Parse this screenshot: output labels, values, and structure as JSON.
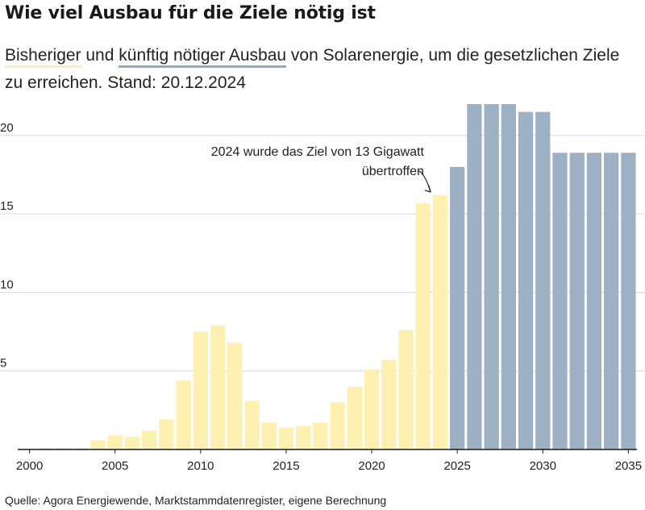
{
  "header": {
    "title": "Wie viel Ausbau für die Ziele nötig ist",
    "subtitle_part1": "Bisheriger",
    "subtitle_part2": " und ",
    "subtitle_part3": "künftig nötiger Ausbau",
    "subtitle_part4": " von Solarenergie, um die gesetzlichen Ziele zu erreichen. Stand: 20.12.2024"
  },
  "footer": {
    "source": "Quelle: Agora Energiewende, Marktstammdatenregister, eigene Berechnung"
  },
  "colors": {
    "past": "#fdf0b0",
    "future": "#9db0c4",
    "grid": "#d9d9d9",
    "axis": "#1a1a1a"
  },
  "chart_data": {
    "type": "bar",
    "title": "",
    "xlabel": "",
    "ylabel": "",
    "ylim": [
      0,
      22
    ],
    "yticks": [
      5,
      10,
      15,
      20
    ],
    "xticks": [
      2000,
      2005,
      2010,
      2015,
      2020,
      2025,
      2030,
      2035
    ],
    "grid": true,
    "categories": [
      2000,
      2001,
      2002,
      2003,
      2004,
      2005,
      2006,
      2007,
      2008,
      2009,
      2010,
      2011,
      2012,
      2013,
      2014,
      2015,
      2016,
      2017,
      2018,
      2019,
      2020,
      2021,
      2022,
      2023,
      2024,
      2025,
      2026,
      2027,
      2028,
      2029,
      2030,
      2031,
      2032,
      2033,
      2034,
      2035
    ],
    "series": [
      {
        "name": "Bisheriger",
        "values": [
          0.05,
          0.1,
          0.1,
          0.1,
          0.6,
          0.9,
          0.8,
          1.2,
          1.9,
          4.4,
          7.5,
          7.9,
          6.8,
          3.1,
          1.7,
          1.4,
          1.5,
          1.7,
          3.0,
          4.0,
          5.1,
          5.7,
          7.6,
          15.7,
          16.2,
          null,
          null,
          null,
          null,
          null,
          null,
          null,
          null,
          null,
          null,
          null
        ]
      },
      {
        "name": "künftig nötiger Ausbau",
        "values": [
          null,
          null,
          null,
          null,
          null,
          null,
          null,
          null,
          null,
          null,
          null,
          null,
          null,
          null,
          null,
          null,
          null,
          null,
          null,
          null,
          null,
          null,
          null,
          null,
          null,
          18.0,
          22.0,
          22.0,
          22.0,
          21.5,
          21.5,
          18.9,
          18.9,
          18.9,
          18.9,
          18.9
        ]
      }
    ],
    "annotation": {
      "line1": "2024 wurde das Ziel von 13 Gigawatt",
      "line2": "übertroffen",
      "target_category": 2024
    }
  }
}
